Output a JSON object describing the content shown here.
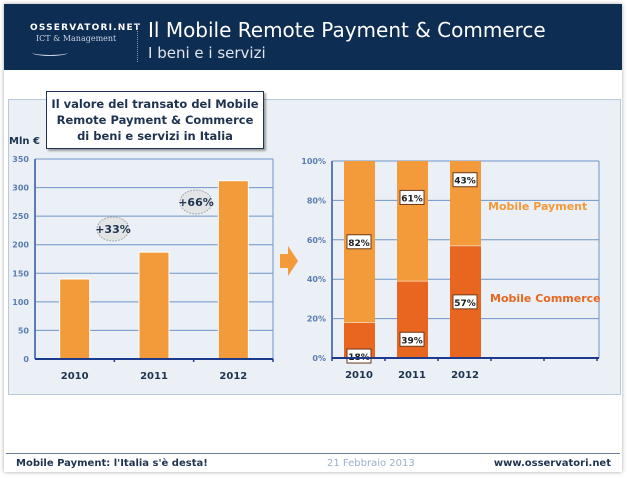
{
  "header": {
    "logo_line1": "OSSERVATORI.NET",
    "logo_line2": "ICT & Management",
    "title": "Il Mobile Remote Payment & Commerce",
    "subtitle": "I beni e i servizi"
  },
  "callout": {
    "lines": [
      "Il valore del transato del Mobile",
      "Remote Payment & Commerce",
      "di beni e servizi in Italia"
    ]
  },
  "footer": {
    "left": "Mobile Payment: l'Italia s'è desta!",
    "center": "21 Febbraio 2013",
    "right": "www.osservatori.net"
  },
  "colors": {
    "payment": "#f39a3a",
    "commerce": "#e8661f",
    "axis": "#1e3a8a",
    "tick": "#5b7db3",
    "grid": "#6f95c8"
  },
  "chart_data": [
    {
      "type": "bar",
      "title": "Il valore del transato del Mobile Remote Payment & Commerce di beni e servizi in Italia",
      "ylabel": "Mln €",
      "categories": [
        "2010",
        "2011",
        "2012"
      ],
      "values": [
        140,
        187,
        312
      ],
      "ylim": [
        0,
        350
      ],
      "yticks": [
        0,
        50,
        100,
        150,
        200,
        250,
        300,
        350
      ],
      "grid": true,
      "annotations": [
        {
          "text": "+33%",
          "between": [
            "2010",
            "2011"
          ]
        },
        {
          "text": "+66%",
          "between": [
            "2011",
            "2012"
          ]
        }
      ]
    },
    {
      "type": "bar",
      "stacked": true,
      "categories": [
        "2010",
        "2011",
        "2012"
      ],
      "series": [
        {
          "name": "Mobile Commerce",
          "values": [
            18,
            39,
            57
          ]
        },
        {
          "name": "Mobile Payment",
          "values": [
            82,
            61,
            43
          ]
        }
      ],
      "ylim": [
        0,
        100
      ],
      "yticks": [
        "0%",
        "20%",
        "40%",
        "60%",
        "80%",
        "100%"
      ],
      "grid": true,
      "legend": "right"
    }
  ]
}
